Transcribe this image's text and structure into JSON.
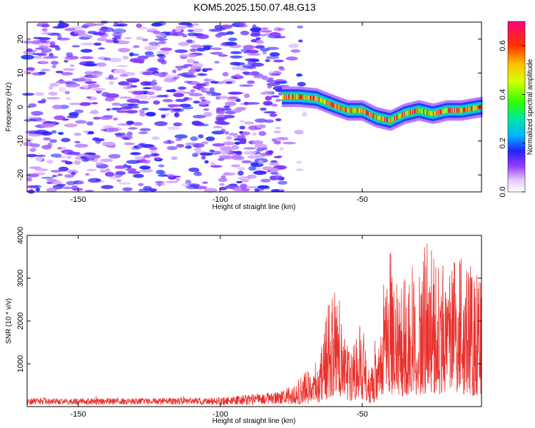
{
  "title": "KOM5.2025.150.07.48.G13",
  "chart_data": [
    {
      "type": "heatmap",
      "xlabel": "Height of straight line (km)",
      "ylabel": "Frequency (Hz)",
      "xlim": [
        -168,
        -8
      ],
      "ylim": [
        -25,
        25
      ],
      "x_ticks": [
        -150,
        -100,
        -50
      ],
      "x_tick_labels": [
        "-150",
        "-100",
        "-50"
      ],
      "y_ticks": [
        -20,
        -10,
        0,
        10,
        20
      ],
      "y_tick_labels": [
        "-20",
        "-10",
        "0",
        "10",
        "20"
      ],
      "colorbar": {
        "label": "Normalized spectral amplitude",
        "range": [
          0,
          0.7
        ],
        "ticks": [
          0,
          0.2,
          0.4,
          0.6
        ],
        "tick_labels": [
          "0.0",
          "0.2",
          "0.4",
          "0.6"
        ]
      },
      "noise_region": {
        "x_range": [
          -168,
          -78
        ],
        "amplitude": [
          0.05,
          0.18
        ]
      },
      "signal_ridge": {
        "points": [
          {
            "x": -78,
            "y": 3
          },
          {
            "x": -72,
            "y": 3
          },
          {
            "x": -66,
            "y": 2.5
          },
          {
            "x": -60,
            "y": 0.5
          },
          {
            "x": -55,
            "y": -1
          },
          {
            "x": -50,
            "y": -1
          },
          {
            "x": -45,
            "y": -3
          },
          {
            "x": -40,
            "y": -4
          },
          {
            "x": -35,
            "y": -2
          },
          {
            "x": -30,
            "y": -1
          },
          {
            "x": -25,
            "y": -2
          },
          {
            "x": -20,
            "y": -1
          },
          {
            "x": -15,
            "y": -1
          },
          {
            "x": -8,
            "y": 0
          }
        ],
        "amplitude": [
          0.35,
          0.7
        ]
      }
    },
    {
      "type": "line",
      "xlabel": "Height of straight line (km)",
      "ylabel": "SNR (10 * v/v)",
      "xlim": [
        -168,
        -8
      ],
      "ylim": [
        0,
        4000
      ],
      "x_ticks": [
        -150,
        -100,
        -50
      ],
      "x_tick_labels": [
        "-150",
        "-100",
        "-50"
      ],
      "y_ticks": [
        1000,
        2000,
        3000,
        4000
      ],
      "y_tick_labels": [
        "1000",
        "2000",
        "3000",
        "4000"
      ],
      "color": "#e8322e",
      "envelope": [
        {
          "x": -168,
          "y": 200
        },
        {
          "x": -130,
          "y": 200
        },
        {
          "x": -100,
          "y": 220
        },
        {
          "x": -90,
          "y": 280
        },
        {
          "x": -80,
          "y": 350
        },
        {
          "x": -75,
          "y": 500
        },
        {
          "x": -70,
          "y": 800
        },
        {
          "x": -65,
          "y": 1200
        },
        {
          "x": -61,
          "y": 2800
        },
        {
          "x": -59,
          "y": 2850
        },
        {
          "x": -55,
          "y": 1400
        },
        {
          "x": -50,
          "y": 2000
        },
        {
          "x": -47,
          "y": 900
        },
        {
          "x": -43,
          "y": 2700
        },
        {
          "x": -40,
          "y": 3700
        },
        {
          "x": -36,
          "y": 3000
        },
        {
          "x": -32,
          "y": 3500
        },
        {
          "x": -30,
          "y": 3300
        },
        {
          "x": -27,
          "y": 4000
        },
        {
          "x": -24,
          "y": 3500
        },
        {
          "x": -20,
          "y": 3400
        },
        {
          "x": -15,
          "y": 3600
        },
        {
          "x": -10,
          "y": 3200
        },
        {
          "x": -8,
          "y": 3700
        }
      ]
    }
  ]
}
